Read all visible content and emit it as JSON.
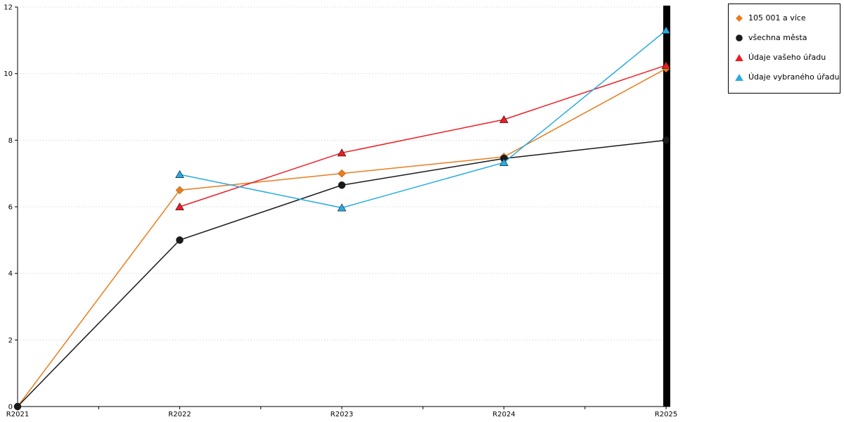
{
  "chart_data": {
    "type": "line",
    "title": "",
    "x": [
      "R2021",
      "R2022",
      "R2023",
      "R2024",
      "R2025"
    ],
    "series": [
      {
        "name": "105 001 a více",
        "color": "#e87d1e",
        "marker": "diamond",
        "values": [
          0,
          6.5,
          7.0,
          7.5,
          10.15
        ]
      },
      {
        "name": "všechna města",
        "color": "#1a1a1a",
        "marker": "circle",
        "values": [
          0,
          5.0,
          6.65,
          7.45,
          8.0
        ]
      },
      {
        "name": "Údaje vašeho úřadu",
        "color": "#ed1c24",
        "marker": "triangle",
        "values": [
          null,
          6.0,
          7.62,
          8.62,
          10.25
        ]
      },
      {
        "name": "Údaje vybraného úřadu",
        "color": "#29abe2",
        "marker": "triangle",
        "values": [
          null,
          6.97,
          5.97,
          7.33,
          11.3
        ]
      }
    ],
    "xlabel": "",
    "ylabel": "",
    "ylim": [
      0,
      12
    ],
    "yticks": [
      0,
      2,
      4,
      6,
      8,
      10,
      12
    ],
    "grid": true,
    "gridline_color": "#cccccc",
    "axis_color": "#000000",
    "legend_position": "top-right"
  }
}
